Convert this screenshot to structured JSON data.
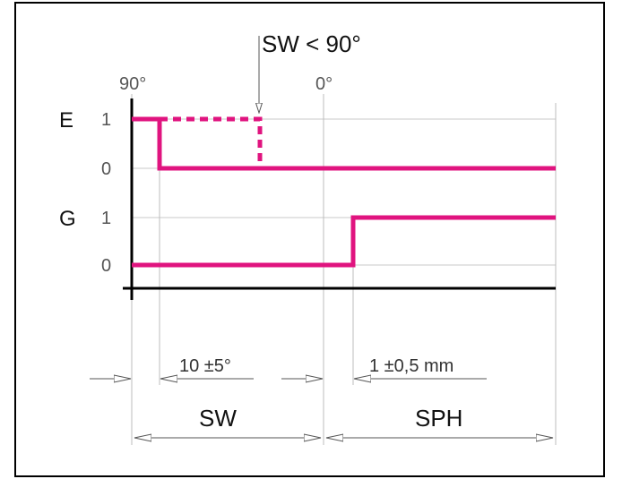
{
  "diagram": {
    "annotation": "SW < 90°",
    "angle_start": "90°",
    "angle_zero": "0°",
    "signals": [
      {
        "name": "E",
        "levels": [
          "1",
          "0"
        ]
      },
      {
        "name": "G",
        "levels": [
          "1",
          "0"
        ]
      }
    ],
    "dimensions": {
      "offset_angle": "10 ±5°",
      "offset_travel": "1 ±0,5 mm",
      "range_sw": "SW",
      "range_sph": "SPH"
    },
    "colors": {
      "signal": "#e0147f",
      "grid": "#c8c8c8",
      "axis": "#000000",
      "dimension": "#555555"
    }
  }
}
